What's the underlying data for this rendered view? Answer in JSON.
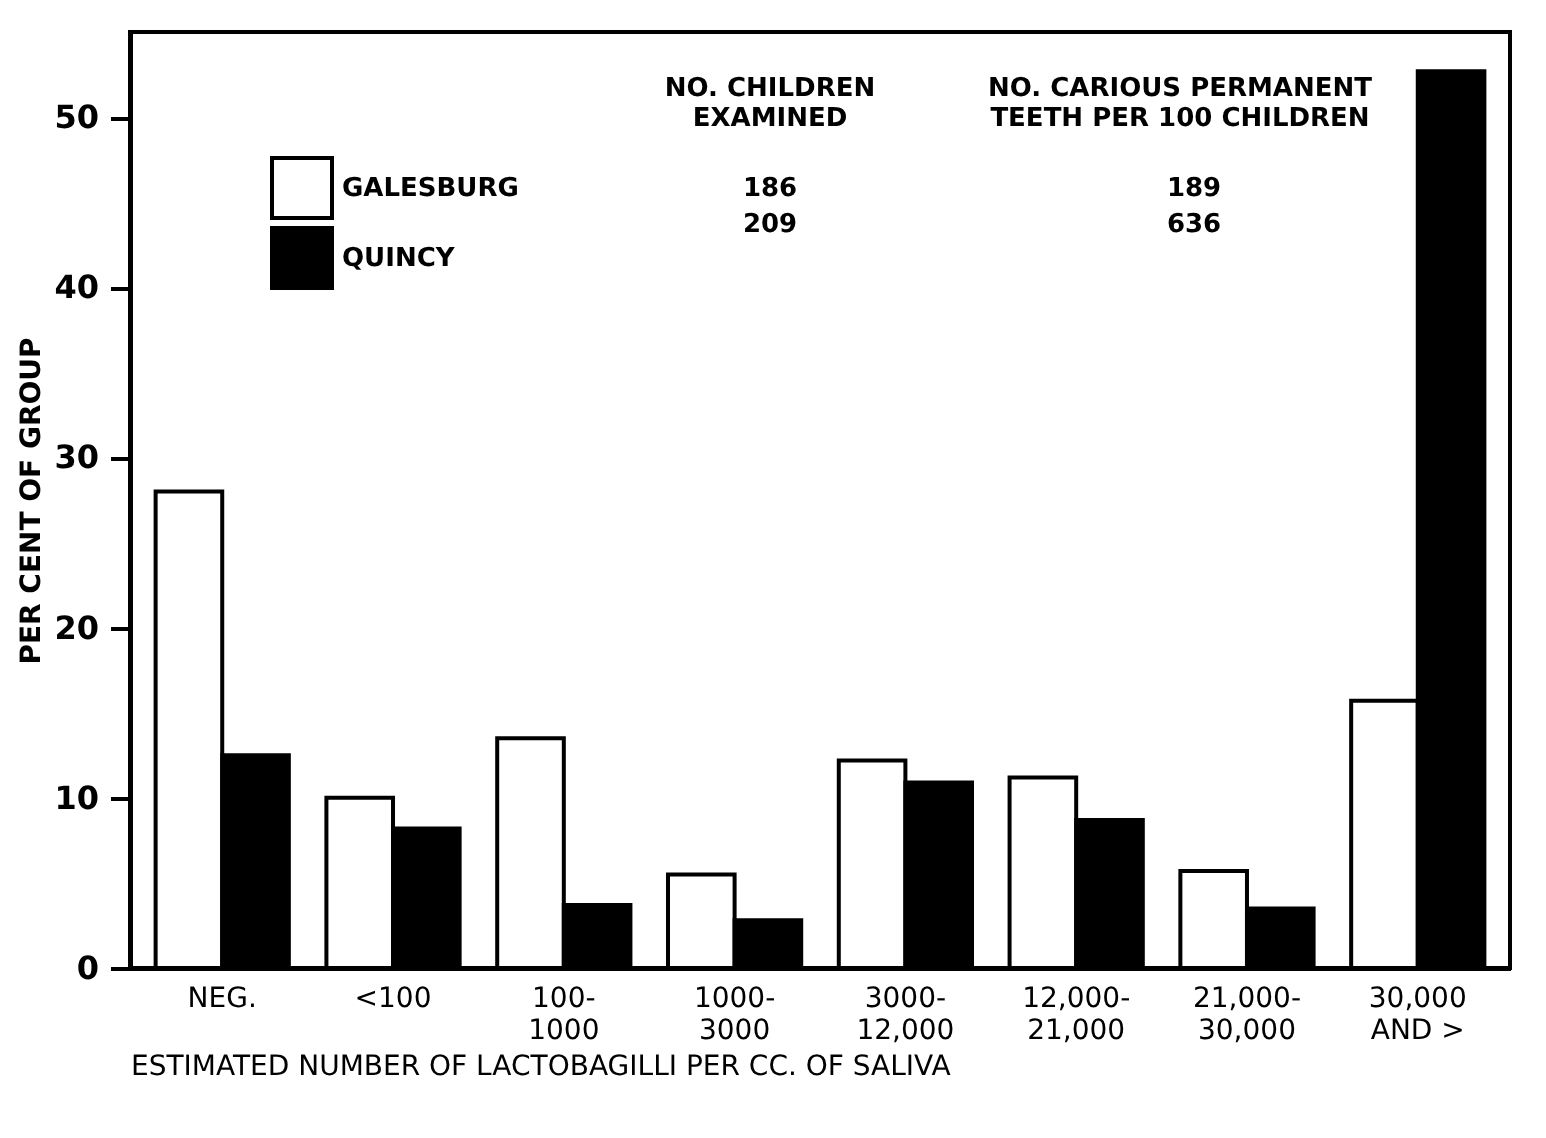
{
  "chart_data": {
    "type": "bar",
    "xlabel": "ESTIMATED NUMBER OF LACTOBAGILLI PER CC. OF SALIVA",
    "ylabel": "PER CENT OF GROUP",
    "categories": [
      "NEG.",
      "<100",
      "100-\n1000",
      "1000-\n3000",
      "3000-\n12,000",
      "12,000-\n21,000",
      "21,000-\n30,000",
      "30,000\nAND >"
    ],
    "series": [
      {
        "name": "GALESBURG",
        "color": "#ffffff",
        "values": [
          28.0,
          10.0,
          13.5,
          5.5,
          12.2,
          11.2,
          5.7,
          15.7
        ]
      },
      {
        "name": "QUINCY",
        "color": "#000000",
        "values": [
          12.5,
          8.2,
          3.7,
          2.8,
          10.9,
          8.7,
          3.5,
          52.7
        ]
      }
    ],
    "ylim": [
      0,
      55
    ],
    "yticks": [
      0,
      10,
      20,
      30,
      40,
      50
    ],
    "grid": false,
    "legend": "top left",
    "annotations": [
      "NO. CHILDREN\nEXAMINED",
      "NO. CARIOUS PERMANENT\nTEETH PER 100 CHILDREN",
      "186",
      "189",
      "209",
      "636"
    ]
  }
}
